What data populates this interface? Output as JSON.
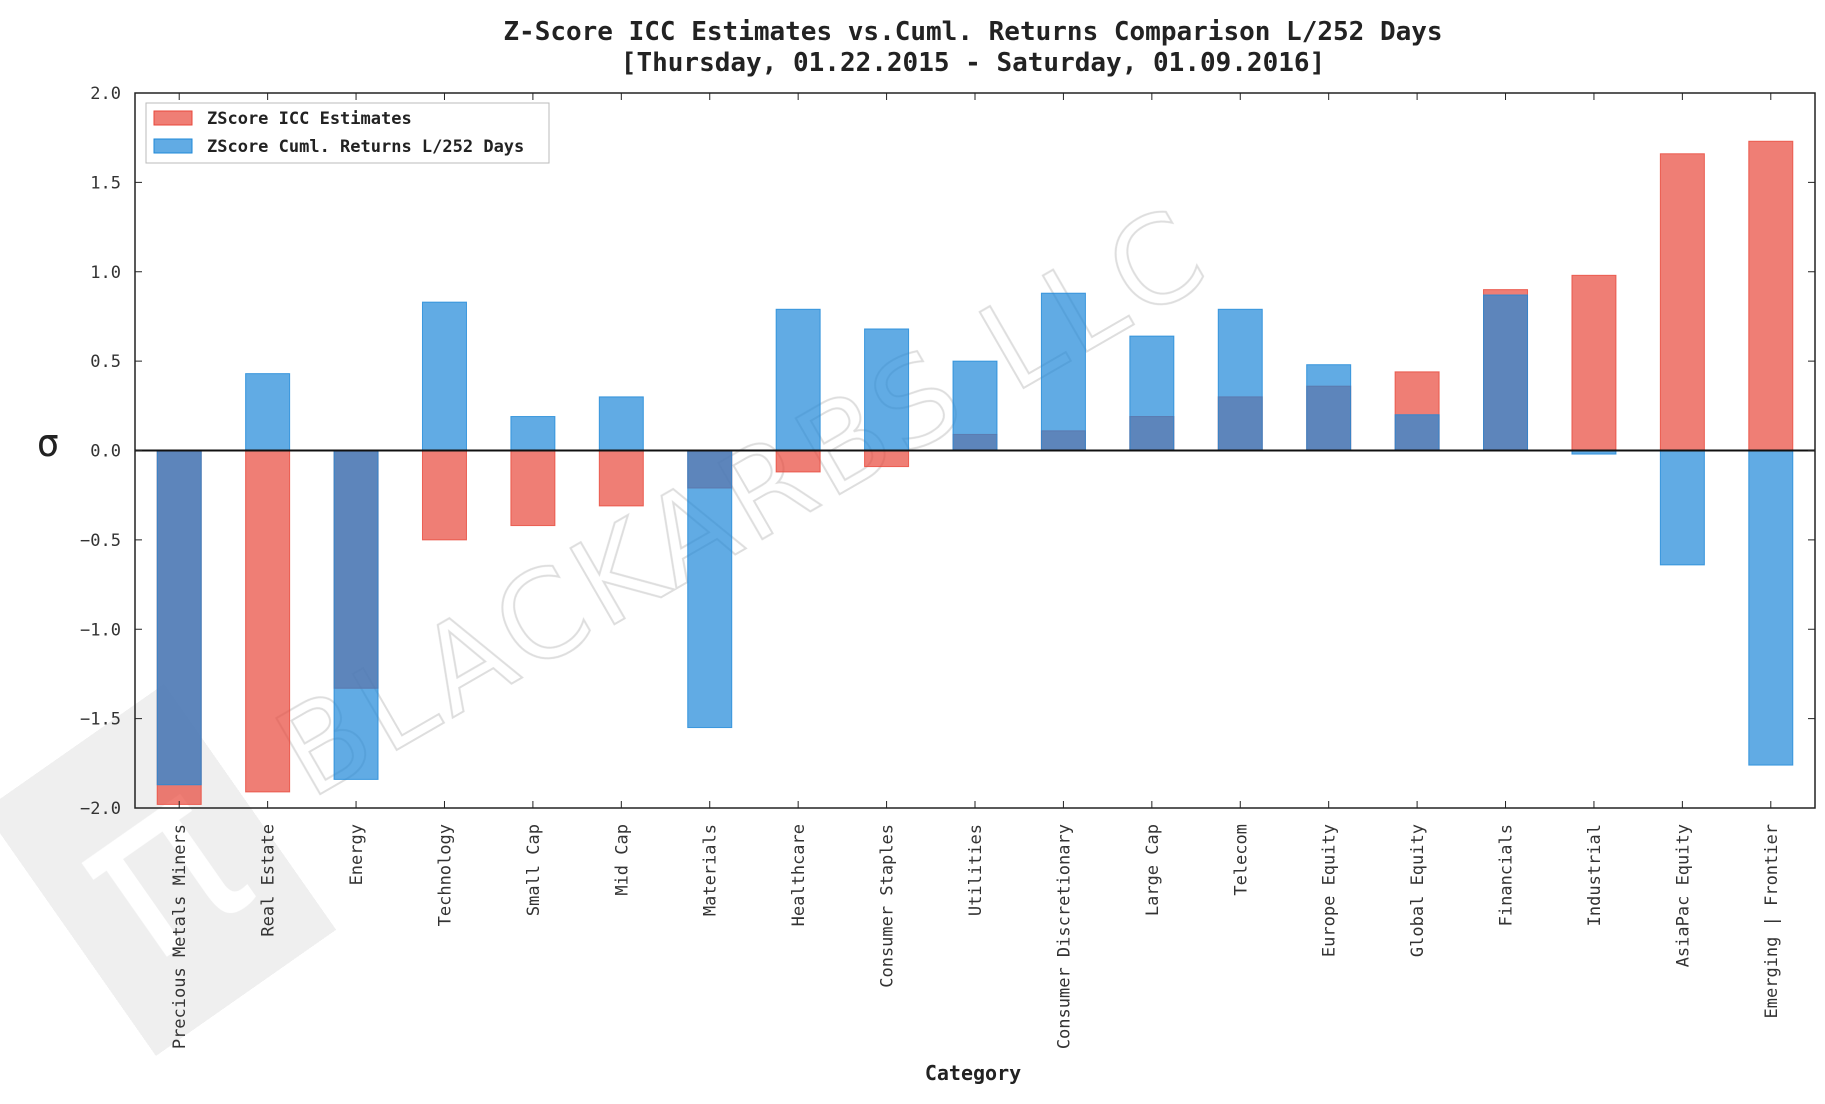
{
  "chart_data": {
    "type": "bar",
    "title": "Z-Score ICC Estimates vs.Cuml. Returns Comparison L/252 Days",
    "subtitle": "[Thursday, 01.22.2015 - Saturday, 01.09.2016]",
    "xlabel": "Category",
    "ylabel": "σ",
    "ylim": [
      -2.0,
      2.0
    ],
    "yticks": [
      "2.0",
      "1.5",
      "1.0",
      "0.5",
      "0.0",
      "−0.5",
      "−1.0",
      "−1.5",
      "−2.0"
    ],
    "ytick_values": [
      2.0,
      1.5,
      1.0,
      0.5,
      0.0,
      -0.5,
      -1.0,
      -1.5,
      -2.0
    ],
    "grid": false,
    "legend_position": "top-left",
    "categories": [
      "Precious Metals Miners",
      "Real Estate",
      "Energy",
      "Technology",
      "Small Cap",
      "Mid Cap",
      "Materials",
      "Healthcare",
      "Consumer Staples",
      "Utilities",
      "Consumer Discretionary",
      "Large Cap",
      "Telecom",
      "Europe Equity",
      "Global Equity",
      "Financials",
      "Industrial",
      "AsiaPac Equity",
      "Emerging | Frontier"
    ],
    "series": [
      {
        "name": "ZScore ICC Estimates",
        "color": "#e8473a",
        "values": [
          -1.98,
          -1.91,
          -1.33,
          -0.5,
          -0.42,
          -0.31,
          -0.21,
          -0.12,
          -0.09,
          0.09,
          0.11,
          0.19,
          0.3,
          0.36,
          0.44,
          0.9,
          0.98,
          1.66,
          1.73
        ]
      },
      {
        "name": "ZScore Cuml. Returns L/252 Days",
        "color": "#1e88d8",
        "values": [
          -1.87,
          0.43,
          -1.84,
          0.83,
          0.19,
          0.3,
          -1.55,
          0.79,
          0.68,
          0.5,
          0.88,
          0.64,
          0.79,
          0.48,
          0.2,
          0.87,
          -0.02,
          -0.64,
          -1.76
        ]
      }
    ]
  },
  "watermark": {
    "text": "BLACKARBS LLC",
    "logo_glyph": "π"
  }
}
